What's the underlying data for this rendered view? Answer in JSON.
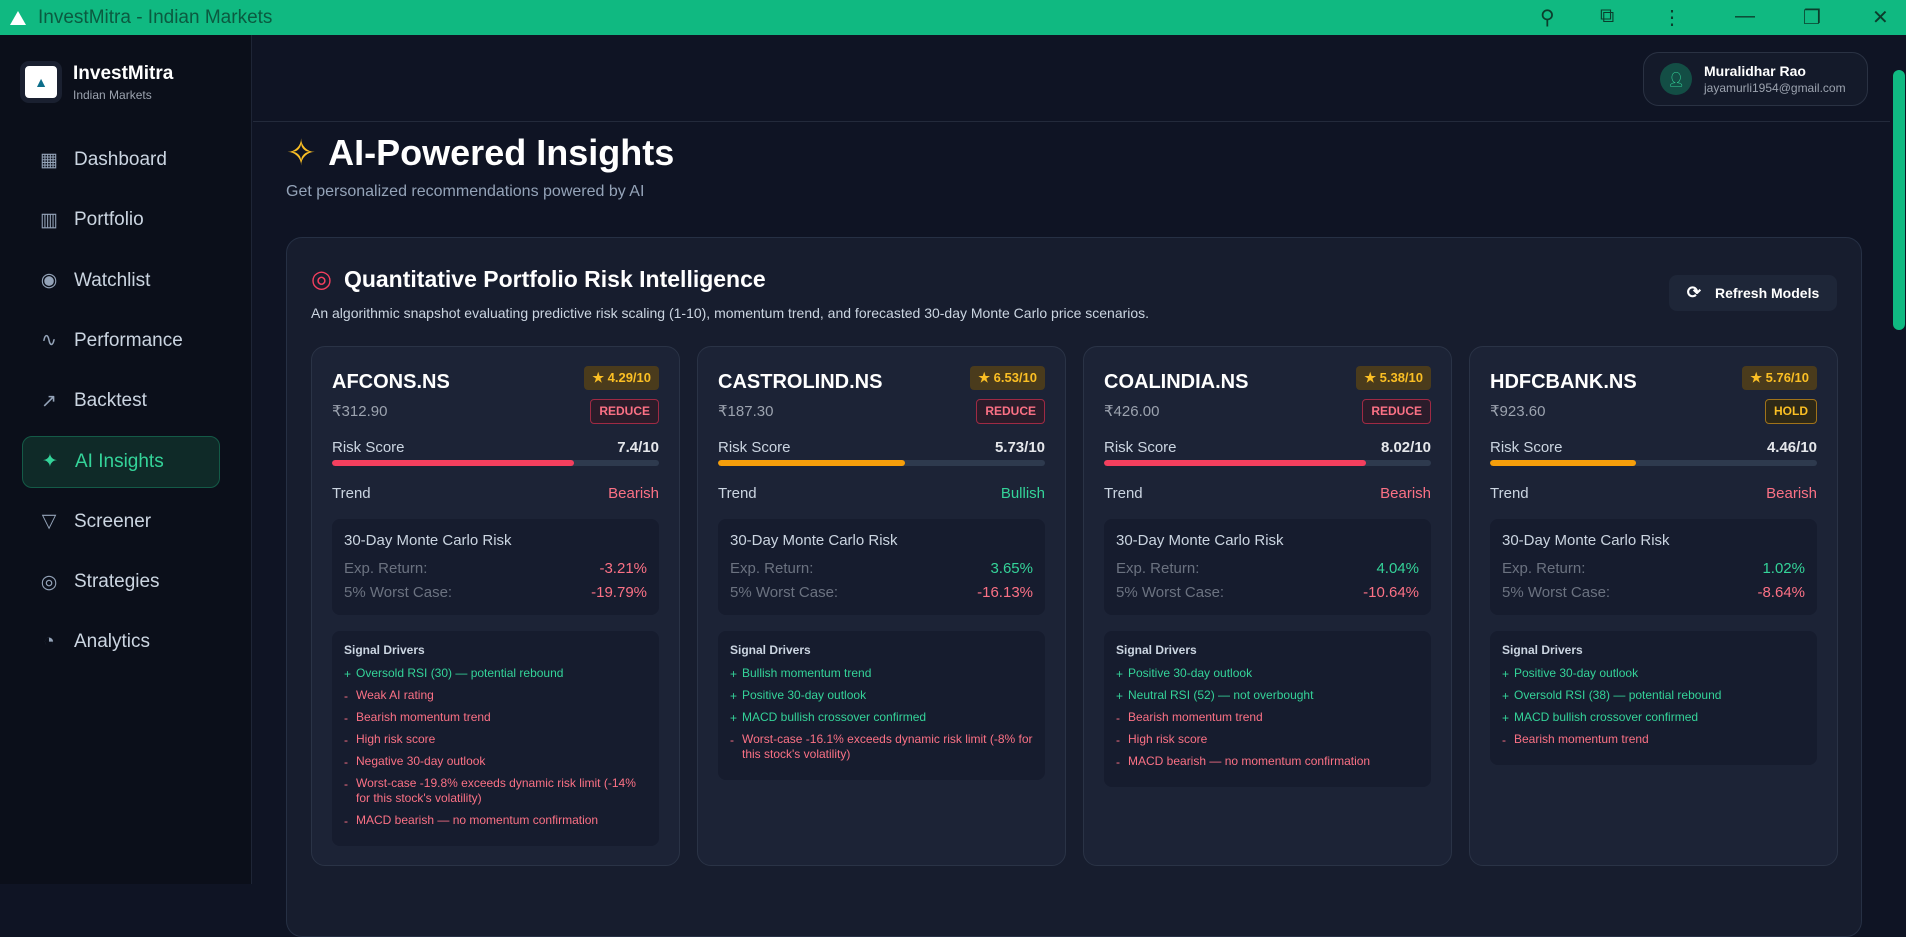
{
  "window": {
    "title": "InvestMitra - Indian Markets"
  },
  "brand": {
    "name": "InvestMitra",
    "tagline": "Indian Markets"
  },
  "sidebar": {
    "items": [
      {
        "label": "Dashboard",
        "icon": "grid-icon",
        "glyph": "▦"
      },
      {
        "label": "Portfolio",
        "icon": "briefcase-icon",
        "glyph": "▥"
      },
      {
        "label": "Watchlist",
        "icon": "eye-icon",
        "glyph": "◉"
      },
      {
        "label": "Performance",
        "icon": "activity-icon",
        "glyph": "∿"
      },
      {
        "label": "Backtest",
        "icon": "trending-up-icon",
        "glyph": "↗"
      },
      {
        "label": "AI Insights",
        "icon": "sparkles-icon",
        "glyph": "✦",
        "active": true
      },
      {
        "label": "Screener",
        "icon": "filter-icon",
        "glyph": "▽"
      },
      {
        "label": "Strategies",
        "icon": "target-icon",
        "glyph": "◎"
      },
      {
        "label": "Analytics",
        "icon": "pie-chart-icon",
        "glyph": "◔"
      }
    ]
  },
  "user": {
    "name": "Muralidhar Rao",
    "email": "jayamurli1954@gmail.com"
  },
  "page": {
    "title": "AI-Powered Insights",
    "subtitle": "Get personalized recommendations powered by AI"
  },
  "panel": {
    "title": "Quantitative Portfolio Risk Intelligence",
    "description": "An algorithmic snapshot evaluating predictive risk scaling (1-10), momentum trend, and forecasted 30-day Monte Carlo price scenarios.",
    "refresh_label": "Refresh Models",
    "labels": {
      "risk": "Risk Score",
      "trend": "Trend",
      "mc": "30-Day Monte Carlo Risk",
      "exp": "Exp. Return:",
      "worst": "5% Worst Case:",
      "drivers": "Signal Drivers"
    }
  },
  "colors": {
    "accent": "#10b981",
    "negative": "#f43f5e",
    "warning": "#f59e0b",
    "positive": "#34d399"
  },
  "cards": [
    {
      "ticker": "AFCONS.NS",
      "price": "₹312.90",
      "rating": "★ 4.29/10",
      "action": "REDUCE",
      "risk": "7.4/10",
      "risk_value": 7.4,
      "trend": "Bearish",
      "exp": "-3.21%",
      "worst": "-19.79%",
      "drivers": [
        {
          "s": "+",
          "t": "Oversold RSI (30) — potential rebound"
        },
        {
          "s": "-",
          "t": "Weak AI rating"
        },
        {
          "s": "-",
          "t": "Bearish momentum trend"
        },
        {
          "s": "-",
          "t": "High risk score"
        },
        {
          "s": "-",
          "t": "Negative 30-day outlook"
        },
        {
          "s": "-",
          "t": "Worst-case -19.8% exceeds dynamic risk limit (-14% for this stock's volatility)"
        },
        {
          "s": "-",
          "t": "MACD bearish — no momentum confirmation"
        }
      ]
    },
    {
      "ticker": "CASTROLIND.NS",
      "price": "₹187.30",
      "rating": "★ 6.53/10",
      "action": "REDUCE",
      "risk": "5.73/10",
      "risk_value": 5.73,
      "trend": "Bullish",
      "exp": "3.65%",
      "worst": "-16.13%",
      "drivers": [
        {
          "s": "+",
          "t": "Bullish momentum trend"
        },
        {
          "s": "+",
          "t": "Positive 30-day outlook"
        },
        {
          "s": "+",
          "t": "MACD bullish crossover confirmed"
        },
        {
          "s": "-",
          "t": "Worst-case -16.1% exceeds dynamic risk limit (-8% for this stock's volatility)"
        }
      ]
    },
    {
      "ticker": "COALINDIA.NS",
      "price": "₹426.00",
      "rating": "★ 5.38/10",
      "action": "REDUCE",
      "risk": "8.02/10",
      "risk_value": 8.02,
      "trend": "Bearish",
      "exp": "4.04%",
      "worst": "-10.64%",
      "drivers": [
        {
          "s": "+",
          "t": "Positive 30-day outlook"
        },
        {
          "s": "+",
          "t": "Neutral RSI (52) — not overbought"
        },
        {
          "s": "-",
          "t": "Bearish momentum trend"
        },
        {
          "s": "-",
          "t": "High risk score"
        },
        {
          "s": "-",
          "t": "MACD bearish — no momentum confirmation"
        }
      ]
    },
    {
      "ticker": "HDFCBANK.NS",
      "price": "₹923.60",
      "rating": "★ 5.76/10",
      "action": "HOLD",
      "risk": "4.46/10",
      "risk_value": 4.46,
      "trend": "Bearish",
      "exp": "1.02%",
      "worst": "-8.64%",
      "drivers": [
        {
          "s": "+",
          "t": "Positive 30-day outlook"
        },
        {
          "s": "+",
          "t": "Oversold RSI (38) — potential rebound"
        },
        {
          "s": "+",
          "t": "MACD bullish crossover confirmed"
        },
        {
          "s": "-",
          "t": "Bearish momentum trend"
        }
      ]
    }
  ]
}
